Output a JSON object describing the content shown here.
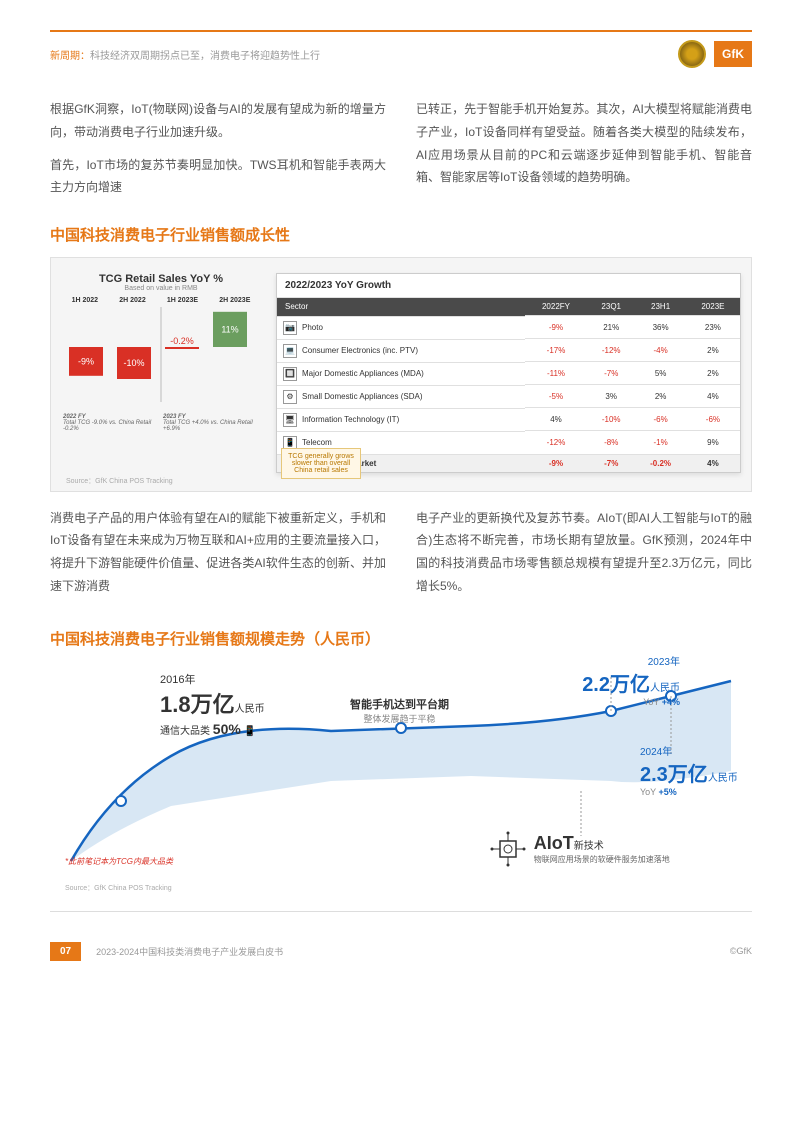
{
  "header": {
    "prefix": "新周期：",
    "text": "科技经济双周期拐点已至，消费电子将迎趋势性上行",
    "logo_text": "GfK"
  },
  "para1": "根据GfK洞察，IoT(物联网)设备与AI的发展有望成为新的增量方向，带动消费电子行业加速升级。",
  "para2": "首先，IoT市场的复苏节奏明显加快。TWS耳机和智能手表两大主力方向增速",
  "para3": "已转正，先于智能手机开始复苏。其次，AI大模型将赋能消费电子产业，IoT设备同样有望受益。随着各类大模型的陆续发布，AI应用场景从目前的PC和云端逐步延伸到智能手机、智能音箱、智能家居等IoT设备领域的趋势明确。",
  "section1_title": "中国科技消费电子行业销售额成长性",
  "bar_chart": {
    "title": "TCG Retail Sales YoY %",
    "subtitle": "Based on value in RMB",
    "periods": [
      "1H 2022",
      "2H 2022",
      "1H 2023E",
      "2H 2023E"
    ],
    "values": [
      -9,
      -10,
      -0.2,
      11
    ],
    "labels": [
      "-9%",
      "-10%",
      "-0.2%",
      "11%"
    ],
    "colors": [
      "#d93025",
      "#d93025",
      "#d93025",
      "#6b9e5f"
    ],
    "footnote_left_title": "2022 FY",
    "footnote_left": "Total TCG -9.0% vs. China Retail -0.2%",
    "footnote_right_title": "2023 FY",
    "footnote_right": "Total TCG +4.0% vs. China Retail +6.9%",
    "callout": "TCG generally grows slower than overall China retail sales"
  },
  "table": {
    "title": "2022/2023 YoY Growth",
    "headers": [
      "Sector",
      "2022FY",
      "23Q1",
      "23H1",
      "2023E"
    ],
    "rows": [
      {
        "icon": "📷",
        "name": "Photo",
        "vals": [
          "-9%",
          "21%",
          "36%",
          "23%"
        ],
        "neg": [
          true,
          false,
          false,
          false
        ]
      },
      {
        "icon": "💻",
        "name": "Consumer Electronics (inc. PTV)",
        "vals": [
          "-17%",
          "-12%",
          "-4%",
          "2%"
        ],
        "neg": [
          true,
          true,
          true,
          false
        ]
      },
      {
        "icon": "🔲",
        "name": "Major Domestic Appliances (MDA)",
        "vals": [
          "-11%",
          "-7%",
          "5%",
          "2%"
        ],
        "neg": [
          true,
          true,
          false,
          false
        ]
      },
      {
        "icon": "⚙",
        "name": "Small Domestic Appliances (SDA)",
        "vals": [
          "-5%",
          "3%",
          "2%",
          "4%"
        ],
        "neg": [
          true,
          false,
          false,
          false
        ]
      },
      {
        "icon": "🖥",
        "name": "Information Technology (IT)",
        "vals": [
          "4%",
          "-10%",
          "-6%",
          "-6%"
        ],
        "neg": [
          false,
          true,
          true,
          true
        ]
      },
      {
        "icon": "📱",
        "name": "Telecom",
        "vals": [
          "-12%",
          "-8%",
          "-1%",
          "9%"
        ],
        "neg": [
          true,
          true,
          true,
          false
        ]
      }
    ],
    "overall": {
      "name": "Overall TCG Market",
      "vals": [
        "-9%",
        "-7%",
        "-0.2%",
        "4%"
      ],
      "neg": [
        true,
        true,
        true,
        false
      ]
    }
  },
  "source1": "Source：GfK China POS Tracking",
  "para4": "消费电子产品的用户体验有望在AI的赋能下被重新定义，手机和IoT设备有望在未来成为万物互联和AI+应用的主要流量接入口，将提升下游智能硬件价值量、促进各类AI软件生态的创新、并加速下游消费",
  "para5": "电子产业的更新换代及复苏节奏。AIoT(即AI人工智能与IoT的融合)生态将不断完善，市场长期有望放量。GfK预测，2024年中国的科技消费品市场零售额总规模有望提升至2.3万亿元，同比增长5%。",
  "section2_title": "中国科技消费电子行业销售额规模走势（人民币）",
  "trend": {
    "year_2016": "2016年",
    "val_2016": "1.8万亿",
    "unit": "人民币",
    "telecom_label": "通信大品类",
    "telecom_pct": "50%",
    "plateau_title": "智能手机达到平台期",
    "plateau_sub": "整体发展趋于平稳",
    "year_2023": "2023年",
    "val_2023": "2.2万亿",
    "yoy_2023": "+4%",
    "year_2024": "2024年",
    "val_2024": "2.3万亿",
    "yoy_2024": "+5%",
    "aiot_title": "AIoT",
    "aiot_sub1": "新技术",
    "aiot_sub2": "物联网应用场景的软硬件服务加速落地",
    "footnote": "*此前笔记本为TCG内最大品类",
    "line_color": "#1565c0",
    "area_color": "#c8ddf0"
  },
  "source2": "Source：GfK China POS Tracking",
  "footer": {
    "page": "07",
    "title": "2023-2024中国科技类消费电子产业发展白皮书",
    "copyright": "©GfK"
  }
}
